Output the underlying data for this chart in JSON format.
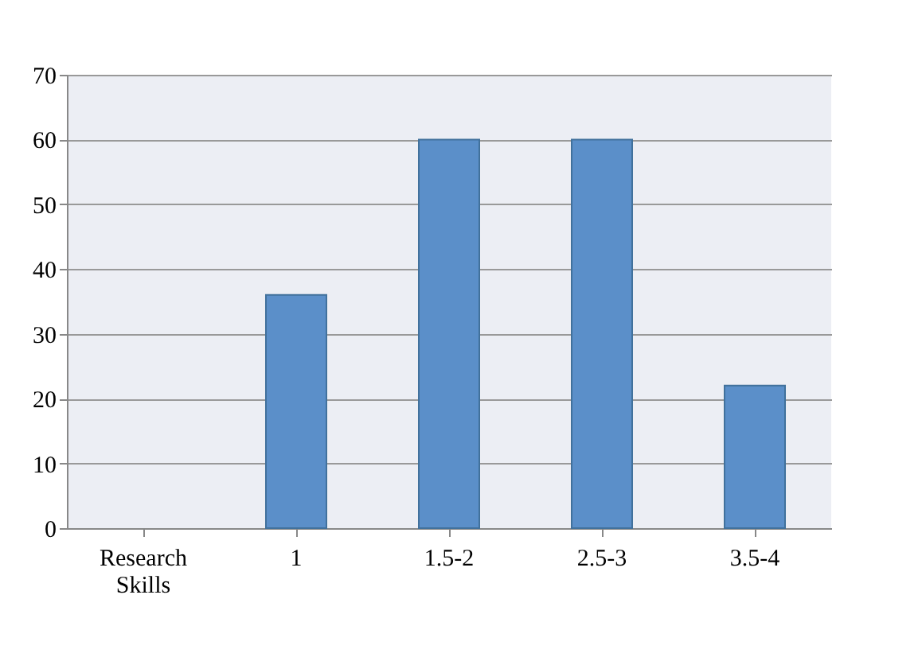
{
  "chart_data": {
    "type": "bar",
    "categories": [
      "Research Skills",
      "1",
      "1.5-2",
      "2.5-3",
      "3.5-4"
    ],
    "values": [
      null,
      36,
      60,
      60,
      22
    ],
    "color": "#5b8fc9",
    "ylim": [
      0,
      70
    ],
    "yticks": [
      0,
      10,
      20,
      30,
      40,
      50,
      60,
      70
    ],
    "grid": "y"
  }
}
